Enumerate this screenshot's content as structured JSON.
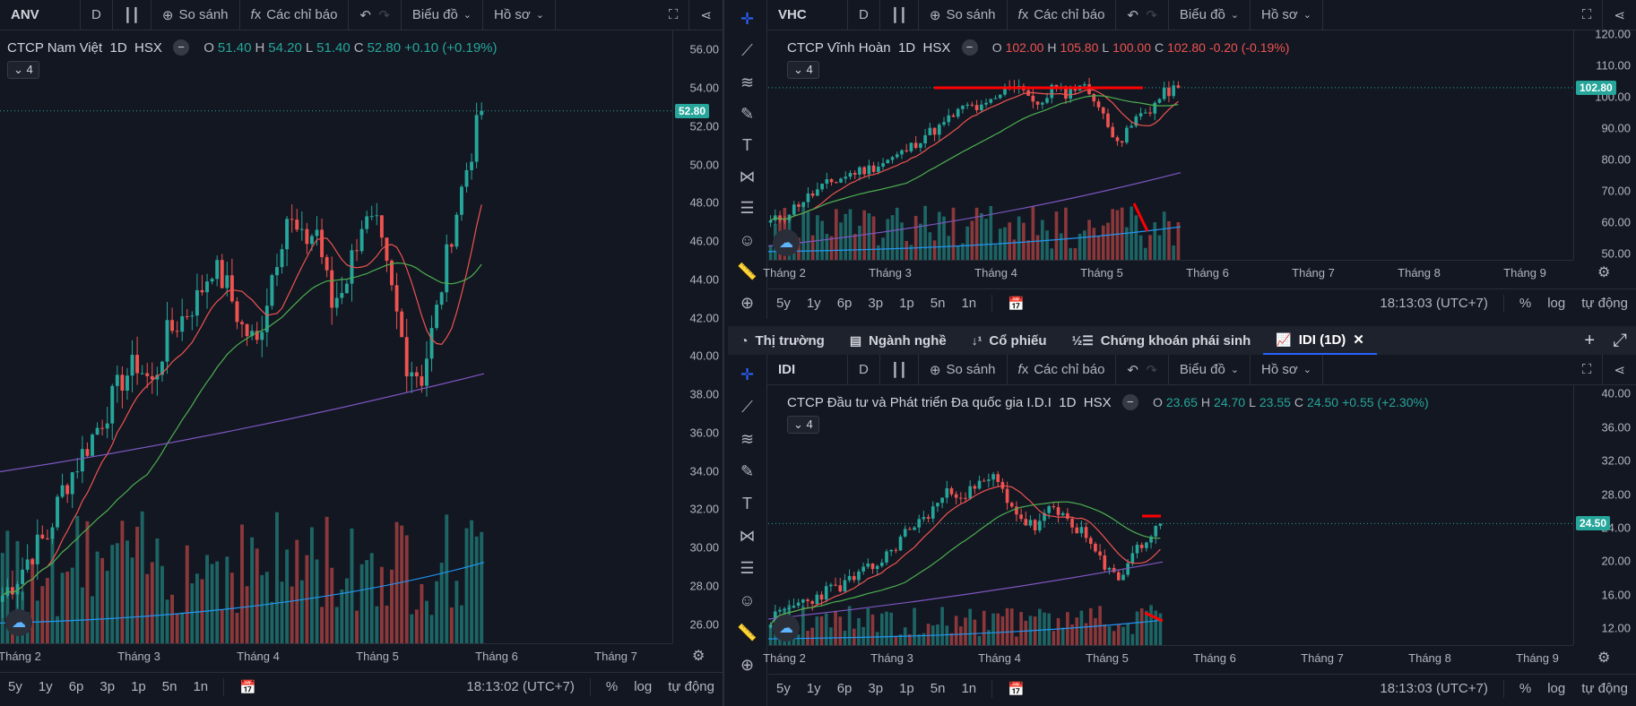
{
  "toolbar_common": {
    "interval": "D",
    "compare": "So sánh",
    "indicators": "Các chỉ báo",
    "chart_type": "Biểu đồ",
    "profile": "Hồ sơ"
  },
  "bottom_common": {
    "ranges": [
      "5y",
      "1y",
      "6p",
      "3p",
      "1p",
      "5n",
      "1n"
    ],
    "percent": "%",
    "log": "log",
    "auto": "tự động"
  },
  "left": {
    "symbol": "ANV",
    "name": "CTCP Nam Việt",
    "tf": "1D",
    "exchange": "HSX",
    "o": "51.40",
    "h": "54.20",
    "l": "51.40",
    "c": "52.80",
    "change": "+0.10 (+0.19%)",
    "collapse": "4",
    "last_price_tag": "52.80",
    "price_labels": [
      "56.00",
      "54.00",
      "52.00",
      "50.00",
      "48.00",
      "46.00",
      "44.00",
      "42.00",
      "40.00",
      "38.00",
      "36.00",
      "34.00",
      "32.00",
      "30.00",
      "28.00",
      "26.00"
    ],
    "months": [
      "Tháng 2",
      "Tháng 3",
      "Tháng 4",
      "Tháng 5",
      "Tháng 6",
      "Tháng 7"
    ],
    "time": "18:13:02 (UTC+7)"
  },
  "top_right": {
    "symbol": "VHC",
    "name": "CTCP Vĩnh Hoàn",
    "tf": "1D",
    "exchange": "HSX",
    "o": "102.00",
    "h": "105.80",
    "l": "100.00",
    "c": "102.80",
    "change": "-0.20 (-0.19%)",
    "collapse": "4",
    "last_price_tag": "102.80",
    "price_labels": [
      "120.00",
      "110.00",
      "100.00",
      "90.00",
      "80.00",
      "70.00",
      "60.00",
      "50.00"
    ],
    "months": [
      "Tháng 2",
      "Tháng 3",
      "Tháng 4",
      "Tháng 5",
      "Tháng 6",
      "Tháng 7",
      "Tháng 8",
      "Tháng 9"
    ],
    "time": "18:13:03 (UTC+7)"
  },
  "middle_tabs": [
    {
      "label": "Thị trường",
      "icon": "pie-icon"
    },
    {
      "label": "Ngành nghề",
      "icon": "list-icon"
    },
    {
      "label": "Cổ phiếu",
      "icon": "sort-icon"
    },
    {
      "label": "Chứng khoán phái sinh",
      "icon": "numbered-list-icon"
    },
    {
      "label": "IDI (1D)",
      "icon": "chart-icon",
      "active": true
    }
  ],
  "bottom_right": {
    "symbol": "IDI",
    "name": "CTCP Đầu tư và Phát triển Đa quốc gia I.D.I",
    "tf": "1D",
    "exchange": "HSX",
    "o": "23.65",
    "h": "24.70",
    "l": "23.55",
    "c": "24.50",
    "change": "+0.55 (+2.30%)",
    "collapse": "4",
    "last_price_tag": "24.50",
    "price_labels": [
      "40.00",
      "36.00",
      "32.00",
      "28.00",
      "24.00",
      "20.00",
      "16.00",
      "12.00"
    ],
    "months": [
      "Tháng 2",
      "Tháng 3",
      "Tháng 4",
      "Tháng 5",
      "Tháng 6",
      "Tháng 7",
      "Tháng 8",
      "Tháng 9"
    ],
    "time": "18:13:03 (UTC+7)"
  },
  "colors": {
    "up": "#26a69a",
    "down": "#ef5350",
    "ma_fast": "#ef5350",
    "ma_slow": "#4caf50",
    "ma_long": "#7e57c2",
    "vol_ma": "#2196f3",
    "annotation": "#ff0000"
  },
  "chart_data": [
    {
      "type": "candlestick",
      "symbol": "ANV",
      "ylim": [
        25,
        57
      ],
      "x_months": [
        "Tháng 2",
        "Tháng 3",
        "Tháng 4",
        "Tháng 5",
        "Tháng 6",
        "Tháng 7"
      ],
      "close_approx": [
        27.5,
        28.5,
        29.8,
        30.6,
        33.0,
        34.4,
        35.8,
        37.2,
        38.8,
        39.6,
        38.5,
        41.1,
        42.0,
        43.0,
        44.7,
        43.6,
        41.5,
        40.6,
        44.3,
        47.3,
        45.9,
        46.6,
        42.6,
        44.2,
        47.0,
        46.6,
        43.3,
        39.7,
        38.9,
        42.3,
        46.5,
        49.8,
        52.8
      ],
      "indicators": [
        "MA fast (red)",
        "MA medium (green)",
        "MA long (purple)",
        "Volume",
        "Volume MA (blue)"
      ]
    },
    {
      "type": "candlestick",
      "symbol": "VHC",
      "ylim": [
        48,
        121
      ],
      "x_months": [
        "Tháng 2",
        "Tháng 3",
        "Tháng 4",
        "Tháng 5",
        "Tháng 6",
        "Tháng 7",
        "Tháng 8",
        "Tháng 9"
      ],
      "close_approx": [
        60,
        62,
        66,
        69,
        72,
        74,
        76,
        77,
        79,
        81,
        84,
        88,
        90,
        94,
        97,
        96,
        99,
        104,
        103,
        96,
        103,
        101,
        104,
        100,
        90,
        86,
        93,
        96,
        101,
        102.8
      ],
      "annotations": [
        "resistance line near 104.5",
        "downward line over volume"
      ]
    },
    {
      "type": "candlestick",
      "symbol": "IDI",
      "ylim": [
        10,
        41
      ],
      "x_months": [
        "Tháng 2",
        "Tháng 3",
        "Tháng 4",
        "Tháng 5",
        "Tháng 6",
        "Tháng 7",
        "Tháng 8",
        "Tháng 9"
      ],
      "close_approx": [
        13,
        14,
        15,
        15.5,
        16.5,
        17,
        18,
        19,
        20,
        22,
        24,
        25,
        27,
        28.5,
        28,
        29,
        30,
        27.5,
        25,
        24,
        26,
        25.5,
        24,
        22,
        19,
        18,
        21,
        22.5,
        24.5
      ],
      "annotations": [
        "short line near 24.6",
        "downward line over volume"
      ]
    }
  ]
}
